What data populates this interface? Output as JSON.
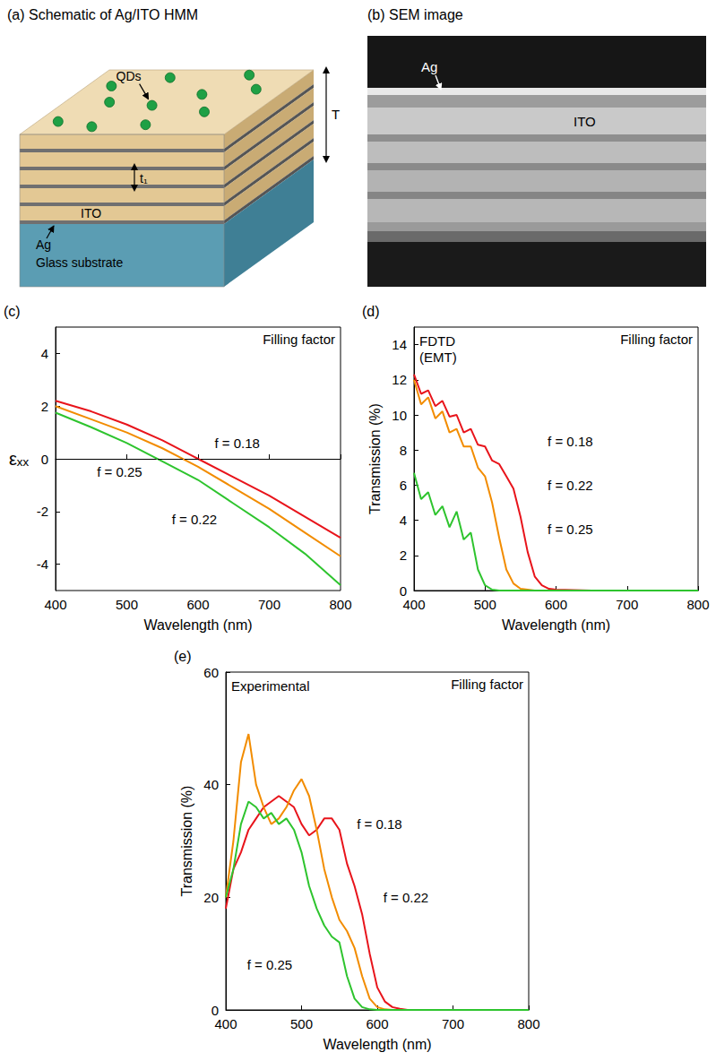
{
  "panels": {
    "a": {
      "title": "(a) Schematic of Ag/ITO HMM",
      "labels": {
        "qds": "QDs",
        "total_thickness": "T",
        "period": "t₁",
        "ito": "ITO",
        "ag": "Ag",
        "substrate": "Glass substrate"
      }
    },
    "b": {
      "title": "(b) SEM image",
      "labels": {
        "ag": "Ag",
        "ito": "ITO"
      }
    }
  },
  "chart_data": [
    {
      "type": "line",
      "panel": "(c)",
      "annotations": {
        "top_right": "Filling factor"
      },
      "x_label": "Wavelength (nm)",
      "y_label": "εₓₓ",
      "xlim": [
        400,
        800
      ],
      "ylim": [
        -5,
        5
      ],
      "xticks": [
        400,
        500,
        600,
        700,
        800
      ],
      "yticks": [
        -4,
        -2,
        0,
        2,
        4
      ],
      "grid": false,
      "hlines": [
        0
      ],
      "x": [
        400,
        450,
        500,
        550,
        600,
        650,
        700,
        750,
        800
      ],
      "series": [
        {
          "name": "f = 0.18",
          "color": "#e8141b",
          "label_at": [
            620,
            0.6
          ],
          "values": [
            2.2,
            1.8,
            1.3,
            0.7,
            0.0,
            -0.7,
            -1.4,
            -2.2,
            -3.0
          ]
        },
        {
          "name": "f = 0.22",
          "color": "#f28c00",
          "label_at": [
            560,
            -2.3
          ],
          "values": [
            2.0,
            1.5,
            1.0,
            0.4,
            -0.3,
            -1.1,
            -1.9,
            -2.8,
            -3.7
          ]
        },
        {
          "name": "f = 0.25",
          "color": "#2ec42e",
          "label_at": [
            455,
            -0.5
          ],
          "values": [
            1.75,
            1.2,
            0.6,
            -0.1,
            -0.8,
            -1.7,
            -2.6,
            -3.6,
            -4.8
          ]
        }
      ]
    },
    {
      "type": "line",
      "panel": "(d)",
      "annotations": {
        "top_left": "FDTD\n(EMT)",
        "top_right": "Filling factor"
      },
      "x_label": "Wavelength (nm)",
      "y_label": "Transmission (%)",
      "xlim": [
        400,
        800
      ],
      "ylim": [
        0,
        15
      ],
      "xticks": [
        400,
        500,
        600,
        700,
        800
      ],
      "yticks": [
        0,
        2,
        4,
        6,
        8,
        10,
        12,
        14
      ],
      "grid": false,
      "x": [
        400,
        410,
        420,
        430,
        440,
        450,
        460,
        470,
        480,
        490,
        500,
        510,
        520,
        530,
        540,
        550,
        560,
        570,
        580,
        590,
        600,
        650,
        700,
        750,
        800
      ],
      "series": [
        {
          "name": "f = 0.18",
          "color": "#e8141b",
          "label_at": [
            585,
            8.5
          ],
          "values": [
            12.3,
            11.2,
            11.4,
            10.5,
            10.8,
            9.9,
            10.0,
            9.0,
            9.2,
            8.3,
            8.2,
            7.4,
            7.2,
            6.5,
            5.8,
            4.2,
            2.2,
            0.8,
            0.3,
            0.1,
            0.05,
            0,
            0,
            0,
            0
          ]
        },
        {
          "name": "f = 0.22",
          "color": "#f28c00",
          "label_at": [
            585,
            6.0
          ],
          "values": [
            12.0,
            10.6,
            11.0,
            9.8,
            10.2,
            9.0,
            9.2,
            8.2,
            8.2,
            7.0,
            6.5,
            5.0,
            3.0,
            1.2,
            0.4,
            0.1,
            0.05,
            0,
            0,
            0,
            0,
            0,
            0,
            0,
            0
          ]
        },
        {
          "name": "f = 0.25",
          "color": "#2ec42e",
          "label_at": [
            585,
            3.5
          ],
          "values": [
            6.7,
            5.2,
            5.6,
            4.3,
            4.8,
            3.6,
            4.5,
            2.9,
            3.3,
            1.2,
            0.3,
            0.05,
            0,
            0,
            0,
            0,
            0,
            0,
            0,
            0,
            0,
            0,
            0,
            0,
            0
          ]
        }
      ]
    },
    {
      "type": "line",
      "panel": "(e)",
      "annotations": {
        "top_left": "Experimental",
        "top_right": "Filling factor"
      },
      "x_label": "Wavelength (nm)",
      "y_label": "Transmission (%)",
      "xlim": [
        400,
        800
      ],
      "ylim": [
        0,
        60
      ],
      "xticks": [
        400,
        500,
        600,
        700,
        800
      ],
      "yticks": [
        0,
        20,
        40,
        60
      ],
      "grid": false,
      "x": [
        400,
        410,
        420,
        430,
        440,
        450,
        460,
        470,
        480,
        490,
        500,
        510,
        520,
        530,
        540,
        550,
        560,
        570,
        580,
        590,
        600,
        610,
        620,
        630,
        640,
        650,
        700,
        750,
        800
      ],
      "series": [
        {
          "name": "f = 0.18",
          "color": "#e8141b",
          "label_at": [
            570,
            33
          ],
          "values": [
            18,
            25,
            28,
            32,
            34,
            36,
            37,
            38,
            37,
            36,
            33,
            31,
            32,
            34,
            34,
            32,
            26,
            22,
            17,
            10,
            4,
            1.5,
            0.5,
            0.2,
            0,
            0,
            0,
            0,
            0
          ]
        },
        {
          "name": "f = 0.22",
          "color": "#f28c00",
          "label_at": [
            605,
            20
          ],
          "values": [
            20,
            30,
            44,
            49,
            40,
            36,
            33,
            34,
            36,
            39,
            41,
            38,
            32,
            25,
            20,
            16,
            14,
            11,
            6,
            2,
            0.5,
            0.1,
            0,
            0,
            0,
            0,
            0,
            0,
            0
          ]
        },
        {
          "name": "f = 0.25",
          "color": "#2ec42e",
          "label_at": [
            425,
            8
          ],
          "values": [
            20,
            25,
            33,
            37,
            36,
            34,
            35,
            33,
            34,
            32,
            28,
            22,
            18,
            15,
            13,
            12,
            6,
            2,
            0.5,
            0.1,
            0,
            0,
            0,
            0,
            0,
            0,
            0,
            0,
            0
          ]
        }
      ]
    }
  ]
}
